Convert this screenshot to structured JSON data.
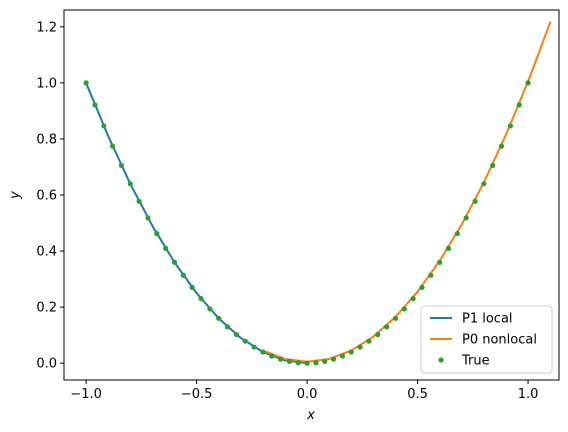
{
  "chart_data": {
    "type": "line",
    "xlabel": "x",
    "ylabel": "y",
    "xlim": [
      -1.1,
      1.14
    ],
    "ylim": [
      -0.06,
      1.26
    ],
    "x_ticks": [
      -1.0,
      -0.5,
      0.0,
      0.5,
      1.0
    ],
    "x_tick_labels": [
      "−1.0",
      "−0.5",
      "0.0",
      "0.5",
      "1.0"
    ],
    "y_ticks": [
      0.0,
      0.2,
      0.4,
      0.6,
      0.8,
      1.0,
      1.2
    ],
    "y_tick_labels": [
      "0.0",
      "0.2",
      "0.4",
      "0.6",
      "0.8",
      "1.0",
      "1.2"
    ],
    "grid": false,
    "legend_position": "lower-right",
    "series": [
      {
        "name": "P1 local",
        "style": "line",
        "color": "#1f77b4",
        "x": [
          -1.0,
          -0.9,
          -0.8,
          -0.7,
          -0.6,
          -0.5,
          -0.4,
          -0.3,
          -0.2,
          -0.1,
          0.0
        ],
        "y": [
          1.0,
          0.81,
          0.64,
          0.49,
          0.36,
          0.25,
          0.16,
          0.09,
          0.04,
          0.01,
          0.0
        ]
      },
      {
        "name": "P0 nonlocal",
        "style": "line",
        "color": "#ff7f0e",
        "x": [
          -0.2,
          -0.1,
          0.0,
          0.1,
          0.2,
          0.3,
          0.4,
          0.5,
          0.6,
          0.7,
          0.8,
          0.9,
          1.0,
          1.1
        ],
        "y": [
          0.045,
          0.015,
          0.005,
          0.015,
          0.045,
          0.095,
          0.165,
          0.255,
          0.365,
          0.495,
          0.645,
          0.815,
          1.005,
          1.215
        ]
      },
      {
        "name": "True",
        "style": "markers",
        "color": "#2ca02c",
        "x": [
          -1.0,
          -0.96,
          -0.92,
          -0.88,
          -0.84,
          -0.8,
          -0.76,
          -0.72,
          -0.68,
          -0.64,
          -0.6,
          -0.56,
          -0.52,
          -0.48,
          -0.44,
          -0.4,
          -0.36,
          -0.32,
          -0.28,
          -0.24,
          -0.2,
          -0.16,
          -0.12,
          -0.08,
          -0.04,
          0.0,
          0.04,
          0.08,
          0.12,
          0.16,
          0.2,
          0.24,
          0.28,
          0.32,
          0.36,
          0.4,
          0.44,
          0.48,
          0.52,
          0.56,
          0.6,
          0.64,
          0.68,
          0.72,
          0.76,
          0.8,
          0.84,
          0.88,
          0.92,
          0.96,
          1.0
        ],
        "y": [
          1.0,
          0.9216,
          0.8464,
          0.7744,
          0.7056,
          0.64,
          0.5776,
          0.5184,
          0.4624,
          0.4096,
          0.36,
          0.3136,
          0.2704,
          0.2304,
          0.1936,
          0.16,
          0.1296,
          0.1024,
          0.0784,
          0.0576,
          0.04,
          0.0256,
          0.0144,
          0.0064,
          0.0016,
          0.0,
          0.0016,
          0.0064,
          0.0144,
          0.0256,
          0.04,
          0.0576,
          0.0784,
          0.1024,
          0.1296,
          0.16,
          0.1936,
          0.2304,
          0.2704,
          0.3136,
          0.36,
          0.4096,
          0.4624,
          0.5184,
          0.5776,
          0.64,
          0.7056,
          0.7744,
          0.8464,
          0.9216,
          1.0
        ]
      }
    ]
  }
}
